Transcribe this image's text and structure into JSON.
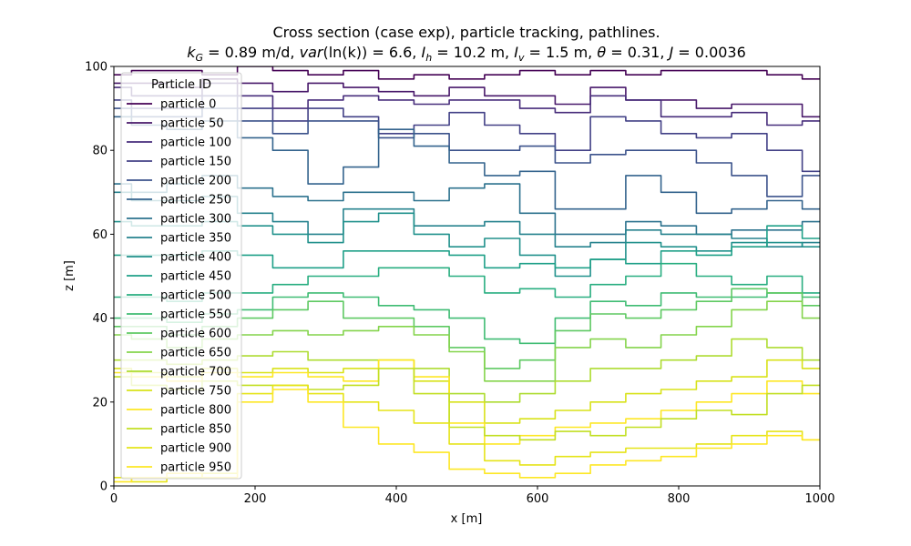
{
  "chart_data": {
    "type": "line",
    "title": "Cross section (case exp), particle tracking, pathlines.",
    "subtitle": "k_G = 0.89 m/d, var(ln(k)) = 6.6, I_h = 10.2 m, I_v = 1.5 m, θ = 0.31, J = 0.0036",
    "subtitle_parts": {
      "k": "k",
      "kG_sub": "G",
      "kG_val": " = 0.89 m/d, ",
      "var": "var",
      "var_val": "(ln(k)) = 6.6, ",
      "Ih": "I",
      "Ih_sub": "h",
      "Ih_val": " = 10.2 m, ",
      "Iv": "I",
      "Iv_sub": "v",
      "Iv_val": " = 1.5 m, ",
      "theta": "θ",
      "theta_val": " = 0.31, ",
      "J": "J",
      "J_val": " = 0.0036"
    },
    "xlabel": "x [m]",
    "ylabel": "z [m]",
    "xlim": [
      0,
      1000
    ],
    "ylim": [
      0,
      100
    ],
    "xticks": [
      0,
      200,
      400,
      600,
      800,
      1000
    ],
    "yticks": [
      0,
      20,
      40,
      60,
      80,
      100
    ],
    "grid": false,
    "legend_title": "Particle ID",
    "legend_position": "upper-left",
    "colormap": "viridis",
    "x": [
      0,
      50,
      100,
      150,
      200,
      250,
      300,
      350,
      400,
      450,
      500,
      550,
      600,
      650,
      700,
      750,
      800,
      850,
      900,
      950,
      1000
    ],
    "series": [
      {
        "name": "particle 0",
        "color": "#440154",
        "values": [
          98,
          99,
          99,
          98,
          100,
          99,
          98,
          99,
          97,
          98,
          97,
          98,
          99,
          98,
          99,
          98,
          99,
          99,
          99,
          98,
          97
        ]
      },
      {
        "name": "particle 50",
        "color": "#48186a",
        "values": [
          96,
          96,
          95,
          97,
          96,
          94,
          96,
          95,
          94,
          93,
          95,
          93,
          93,
          91,
          95,
          92,
          92,
          90,
          91,
          91,
          88
        ]
      },
      {
        "name": "particle 100",
        "color": "#472d7b",
        "values": [
          95,
          93,
          93,
          96,
          93,
          90,
          92,
          93,
          92,
          91,
          92,
          92,
          90,
          89,
          93,
          92,
          88,
          88,
          89,
          86,
          87
        ]
      },
      {
        "name": "particle 150",
        "color": "#424086",
        "values": [
          92,
          90,
          90,
          93,
          90,
          87,
          90,
          88,
          84,
          86,
          89,
          86,
          84,
          80,
          88,
          87,
          84,
          83,
          84,
          80,
          75
        ]
      },
      {
        "name": "particle 200",
        "color": "#3b528b",
        "values": [
          90,
          88,
          88,
          90,
          87,
          84,
          87,
          87,
          83,
          84,
          80,
          80,
          81,
          77,
          79,
          80,
          80,
          77,
          74,
          69,
          74
        ]
      },
      {
        "name": "particle 250",
        "color": "#33638d",
        "values": [
          88,
          86,
          85,
          87,
          83,
          80,
          72,
          76,
          85,
          81,
          77,
          74,
          75,
          66,
          66,
          74,
          70,
          65,
          66,
          68,
          66
        ]
      },
      {
        "name": "particle 300",
        "color": "#2c728e",
        "values": [
          72,
          70,
          72,
          74,
          71,
          69,
          68,
          70,
          70,
          68,
          71,
          72,
          65,
          60,
          60,
          63,
          62,
          60,
          61,
          61,
          63
        ]
      },
      {
        "name": "particle 350",
        "color": "#26828e",
        "values": [
          70,
          68,
          68,
          69,
          65,
          63,
          60,
          66,
          66,
          62,
          62,
          63,
          60,
          57,
          58,
          61,
          60,
          60,
          59,
          57,
          58
        ]
      },
      {
        "name": "particle 400",
        "color": "#21918c",
        "values": [
          63,
          62,
          62,
          63,
          62,
          60,
          58,
          63,
          65,
          60,
          57,
          59,
          55,
          50,
          54,
          58,
          57,
          56,
          58,
          58,
          57
        ]
      },
      {
        "name": "particle 450",
        "color": "#1fa088",
        "values": [
          55,
          55,
          55,
          56,
          55,
          52,
          52,
          56,
          56,
          56,
          55,
          52,
          53,
          52,
          54,
          53,
          56,
          55,
          57,
          62,
          59
        ]
      },
      {
        "name": "particle 500",
        "color": "#28ae80",
        "values": [
          45,
          45,
          44,
          46,
          46,
          48,
          50,
          50,
          52,
          52,
          50,
          46,
          47,
          45,
          48,
          50,
          53,
          50,
          48,
          50,
          46
        ]
      },
      {
        "name": "particle 550",
        "color": "#3fbc73",
        "values": [
          40,
          40,
          39,
          41,
          42,
          45,
          46,
          45,
          43,
          42,
          40,
          35,
          34,
          40,
          44,
          43,
          46,
          45,
          45,
          46,
          45
        ]
      },
      {
        "name": "particle 600",
        "color": "#5ec962",
        "values": [
          38,
          38,
          36,
          38,
          40,
          42,
          44,
          40,
          40,
          38,
          33,
          28,
          30,
          37,
          41,
          40,
          42,
          44,
          47,
          46,
          43
        ]
      },
      {
        "name": "particle 650",
        "color": "#84d44b",
        "values": [
          36,
          35,
          33,
          35,
          36,
          37,
          36,
          37,
          38,
          36,
          32,
          25,
          25,
          33,
          35,
          33,
          36,
          38,
          42,
          44,
          40
        ]
      },
      {
        "name": "particle 700",
        "color": "#addc30",
        "values": [
          30,
          30,
          29,
          30,
          31,
          32,
          30,
          30,
          30,
          28,
          22,
          20,
          22,
          25,
          28,
          28,
          30,
          31,
          35,
          33,
          30
        ]
      },
      {
        "name": "particle 750",
        "color": "#d8e219",
        "values": [
          28,
          27,
          26,
          28,
          27,
          28,
          27,
          28,
          30,
          25,
          20,
          15,
          16,
          18,
          20,
          22,
          23,
          25,
          26,
          30,
          28
        ]
      },
      {
        "name": "particle 800",
        "color": "#fde725",
        "values": [
          27,
          26,
          25,
          27,
          26,
          27,
          26,
          25,
          30,
          26,
          15,
          10,
          12,
          14,
          15,
          16,
          18,
          20,
          22,
          25,
          22
        ]
      },
      {
        "name": "particle 850",
        "color": "#c2df23",
        "values": [
          26,
          24,
          23,
          25,
          24,
          24,
          23,
          24,
          28,
          22,
          14,
          12,
          11,
          13,
          12,
          14,
          16,
          18,
          17,
          22,
          24
        ]
      },
      {
        "name": "particle 900",
        "color": "#e5e419",
        "values": [
          2,
          1,
          2,
          3,
          22,
          24,
          22,
          20,
          18,
          15,
          10,
          6,
          5,
          7,
          8,
          9,
          9,
          10,
          12,
          13,
          11
        ]
      },
      {
        "name": "particle 950",
        "color": "#fde725",
        "values": [
          1,
          2,
          3,
          2,
          20,
          23,
          20,
          14,
          10,
          8,
          4,
          3,
          2,
          3,
          5,
          6,
          7,
          9,
          10,
          12,
          11
        ]
      }
    ]
  }
}
